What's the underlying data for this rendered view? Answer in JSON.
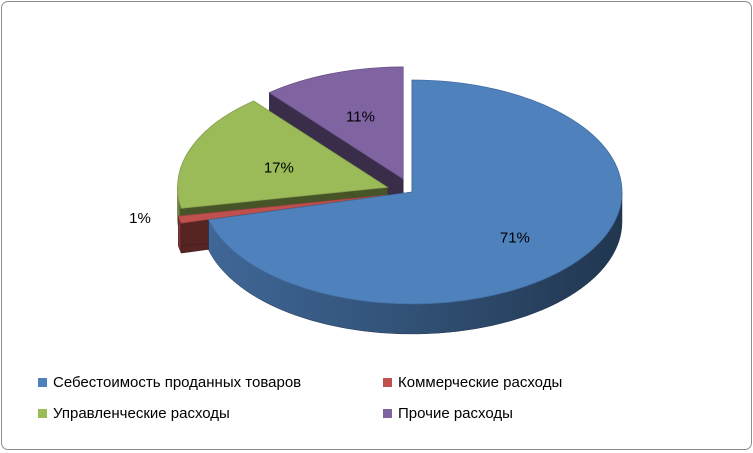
{
  "chart_data": {
    "type": "pie",
    "variant": "3d-exploded",
    "categories": [
      "Себестоимость проданных товаров",
      "Коммерческие расходы",
      "Управленческие расходы",
      "Прочие расходы"
    ],
    "values": [
      71,
      1,
      17,
      11
    ],
    "labels": [
      "71%",
      "1%",
      "17%",
      "11%"
    ],
    "colors": [
      "#4f81bd",
      "#c0504d",
      "#9bbb59",
      "#8064a2"
    ],
    "title": "",
    "legend_position": "bottom"
  }
}
